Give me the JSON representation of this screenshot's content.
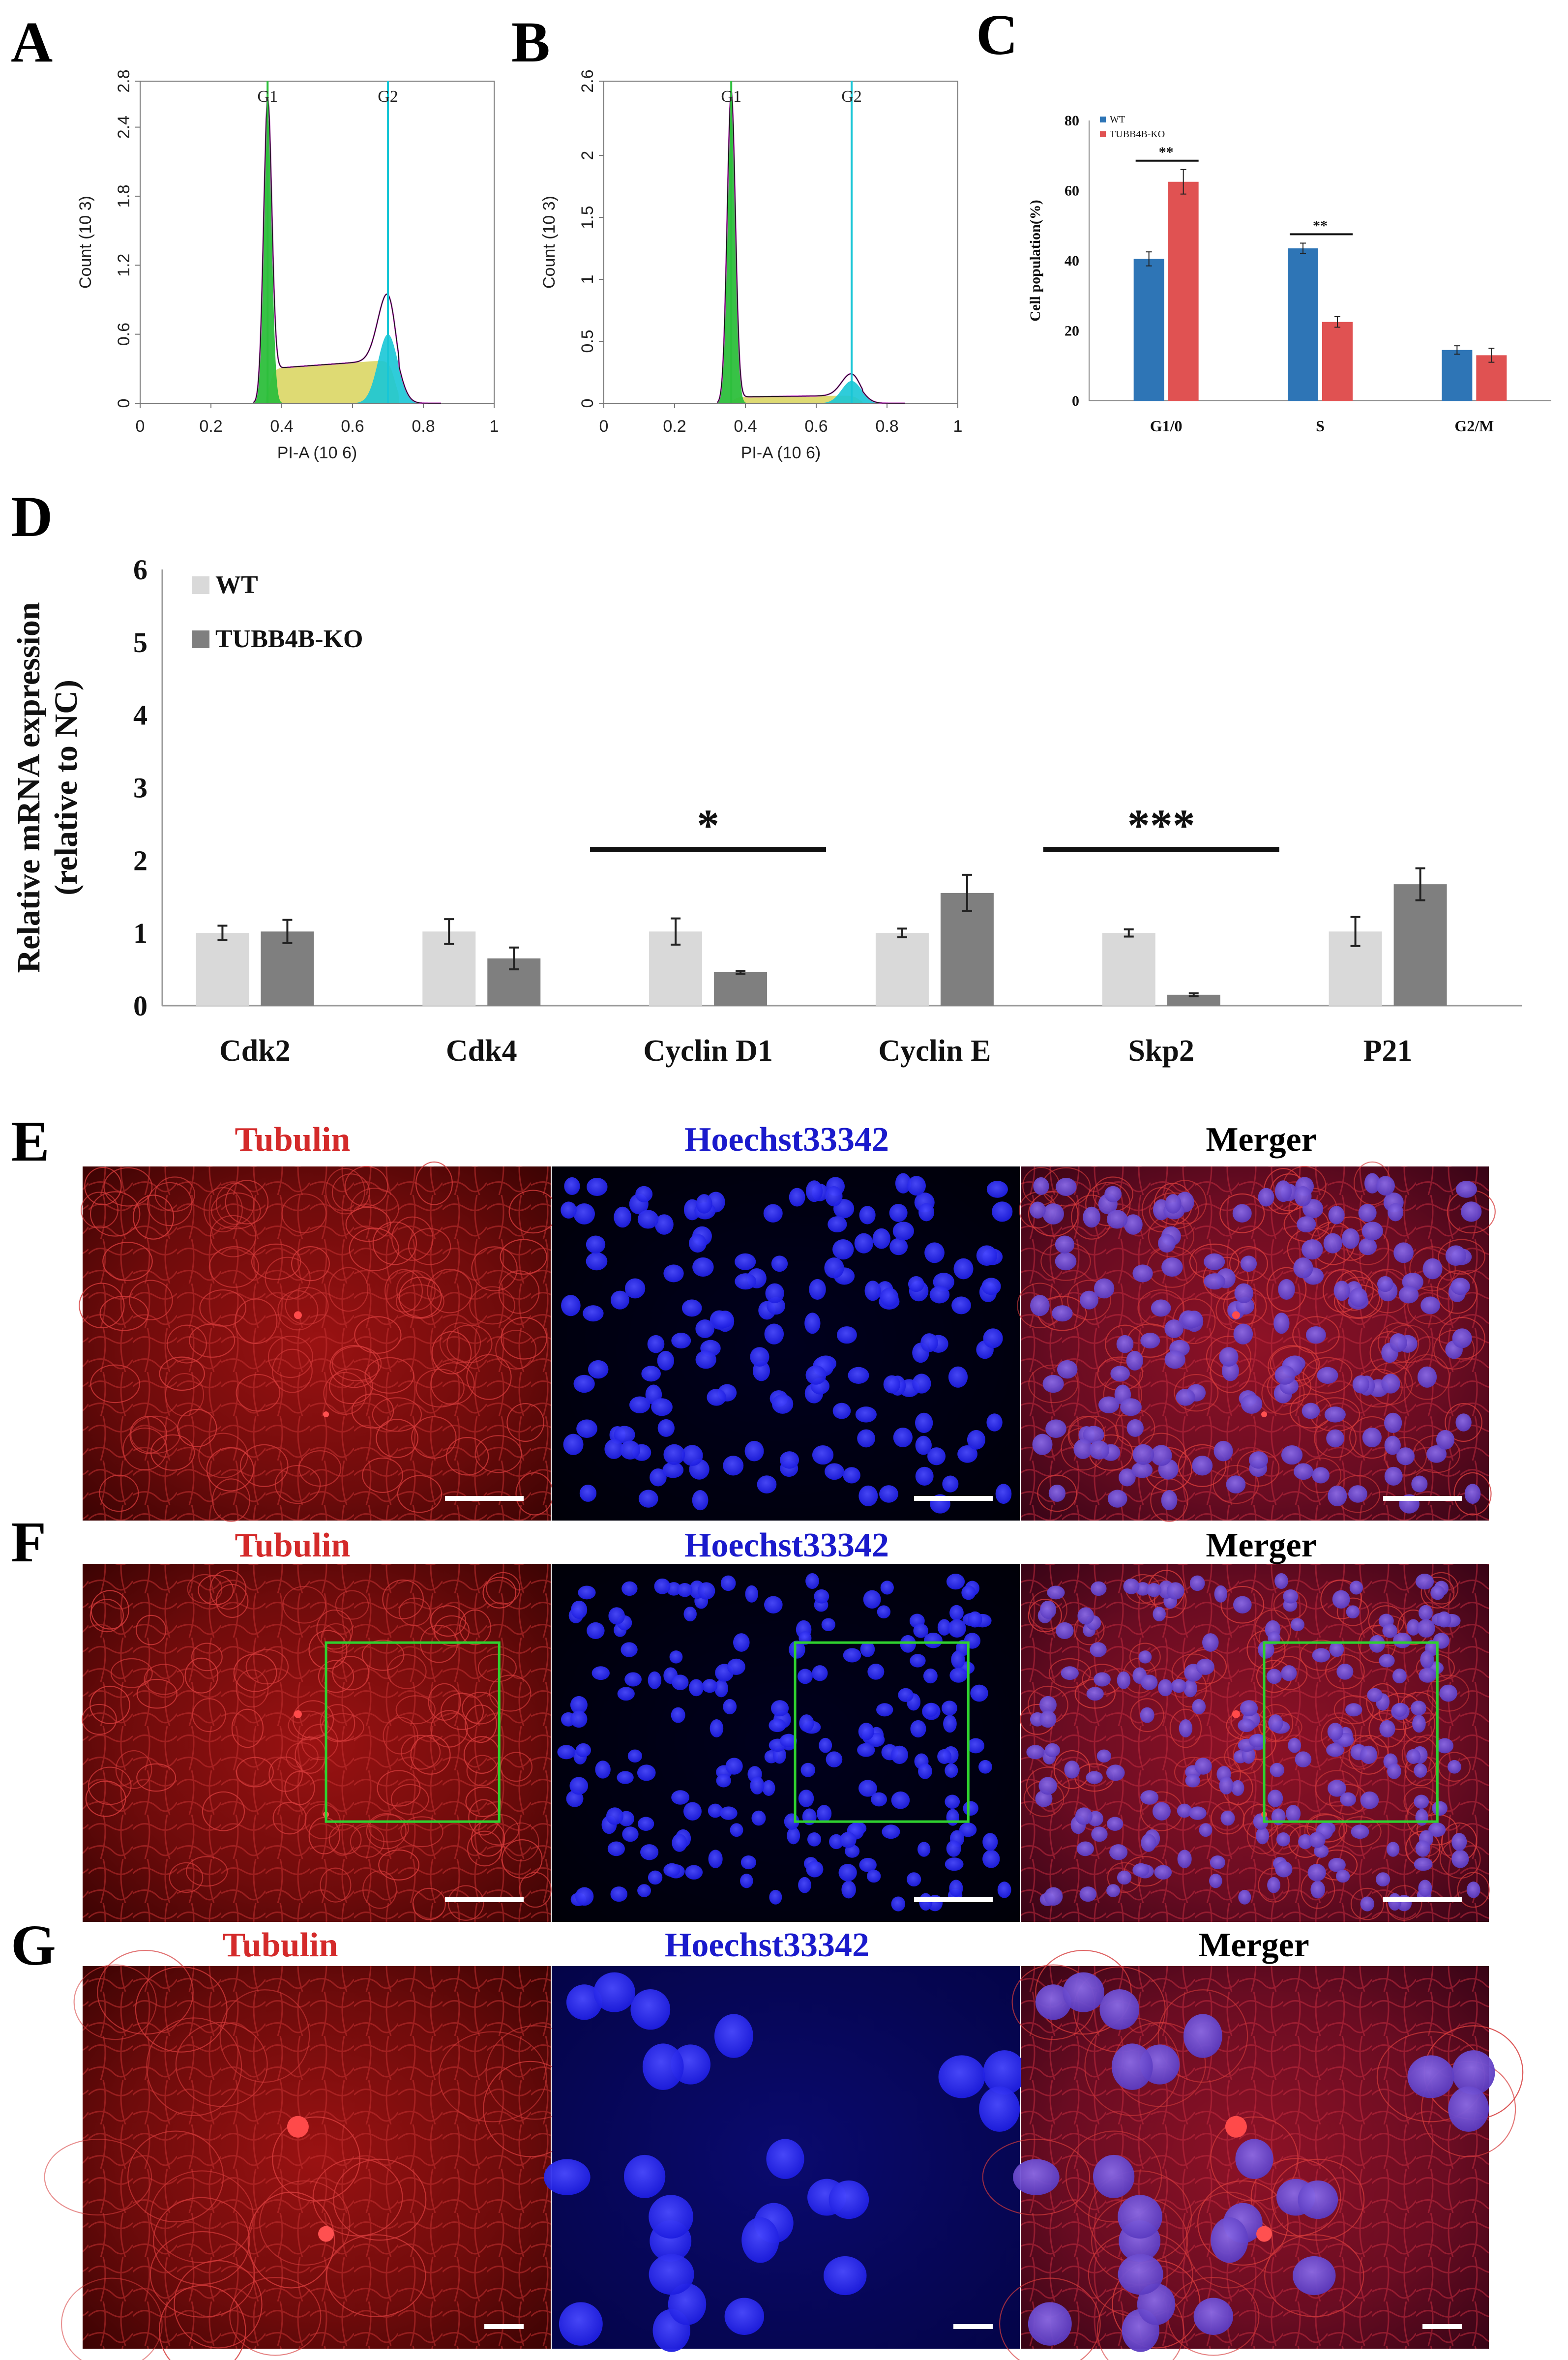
{
  "panel_labels": {
    "a": "A",
    "b": "B",
    "c": "C",
    "d": "D",
    "e": "E",
    "f": "F",
    "g": "G"
  },
  "colors": {
    "wt_blue": "#2e75b6",
    "ko_red": "#e05252",
    "wt_gray": "#d9d9d9",
    "ko_gray": "#7f7f7f",
    "tubulin_text": "#d42a2a",
    "hoechst_text": "#1a1acc",
    "merger_text": "#000000",
    "g1_green": "#2dbf3c",
    "s_yellow": "#d8d45a",
    "g2_cyan": "#18c6d6",
    "fit_magenta": "#c040c0",
    "roi_green": "#2fd12f"
  },
  "chart_data": [
    {
      "id": "A",
      "type": "histogram",
      "xlabel": "PI-A (10 6)",
      "ylabel": "Count (10 3)",
      "xlim": [
        0,
        1
      ],
      "ylim": [
        0,
        2.8
      ],
      "xticks": [
        "0",
        "0.2",
        "0.4",
        "0.6",
        "0.8",
        "1"
      ],
      "yticks": [
        "0",
        "0.6",
        "1.2",
        "1.8",
        "2.4",
        "2.8"
      ],
      "gates": [
        {
          "label": "G1",
          "x": 0.36
        },
        {
          "label": "G2",
          "x": 0.7
        }
      ],
      "g1_peak": 2.55,
      "s_plateau": 0.3,
      "g2_peak": 0.6
    },
    {
      "id": "B",
      "type": "histogram",
      "xlabel": "PI-A (10 6)",
      "ylabel": "Count (10 3)",
      "xlim": [
        0,
        1
      ],
      "ylim": [
        0,
        2.6
      ],
      "xticks": [
        "0",
        "0.2",
        "0.4",
        "0.6",
        "0.8",
        "1"
      ],
      "yticks": [
        "0",
        "0.5",
        "1",
        "1.5",
        "2",
        "2.6"
      ],
      "gates": [
        {
          "label": "G1",
          "x": 0.36
        },
        {
          "label": "G2",
          "x": 0.7
        }
      ],
      "g1_peak": 2.5,
      "s_plateau": 0.05,
      "g2_peak": 0.18
    },
    {
      "id": "C",
      "type": "bar",
      "title": "",
      "ylabel": "Cell population(%)",
      "xlabel": "",
      "ylim": [
        0,
        80
      ],
      "yticks": [
        "0",
        "20",
        "40",
        "60",
        "80"
      ],
      "categories": [
        "G1/0",
        "S",
        "G2/M"
      ],
      "series": [
        {
          "name": "WT",
          "values": [
            40.5,
            43.5,
            14.5
          ],
          "errors": [
            2,
            1.5,
            1.2
          ]
        },
        {
          "name": "TUBB4B-KO",
          "values": [
            62.5,
            22.5,
            13
          ],
          "errors": [
            3.5,
            1.5,
            2
          ]
        }
      ],
      "significance": [
        {
          "category": "G1/0",
          "label": "**"
        },
        {
          "category": "S",
          "label": "**"
        }
      ]
    },
    {
      "id": "D",
      "type": "bar",
      "ylabel": "Relative mRNA expression (relative to NC)",
      "xlabel": "",
      "ylim": [
        0,
        6
      ],
      "yticks": [
        "0",
        "1",
        "2",
        "3",
        "4",
        "5",
        "6"
      ],
      "categories": [
        "Cdk2",
        "Cdk4",
        "Cyclin D1",
        "Cyclin E",
        "Skp2",
        "P21"
      ],
      "series": [
        {
          "name": "WT",
          "values": [
            1.0,
            1.02,
            1.02,
            1.0,
            1.0,
            1.02
          ],
          "errors": [
            0.1,
            0.17,
            0.18,
            0.06,
            0.05,
            0.2
          ]
        },
        {
          "name": "TUBB4B-KO",
          "values": [
            1.02,
            0.65,
            0.46,
            1.55,
            0.15,
            1.67
          ],
          "errors": [
            0.16,
            0.15,
            0.02,
            0.25,
            0.02,
            0.22
          ]
        }
      ],
      "significance": [
        {
          "category": "Cyclin D1",
          "label": "*"
        },
        {
          "category": "Skp2",
          "label": "***"
        }
      ]
    }
  ],
  "micro_titles": {
    "tubulin": "Tubulin",
    "hoechst": "Hoechst33342",
    "merger": "Merger"
  }
}
